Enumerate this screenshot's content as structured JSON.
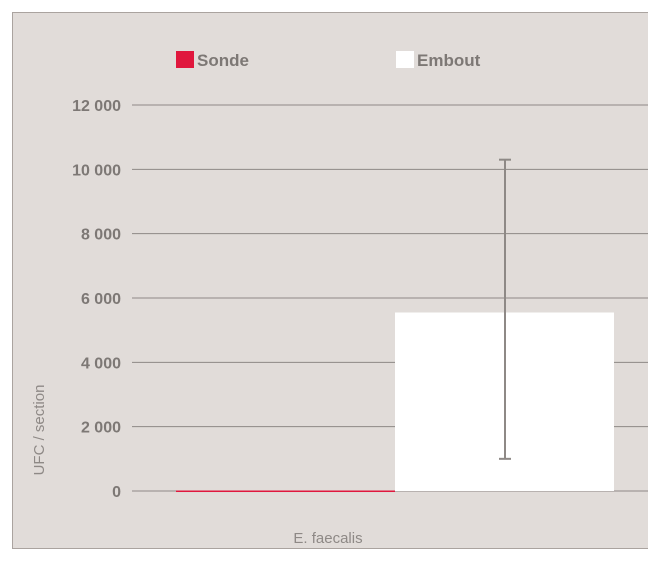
{
  "chart_data": {
    "type": "bar",
    "categories": [
      "E. faecalis"
    ],
    "series": [
      {
        "name": "Sonde",
        "values": [
          15
        ],
        "color": "#e0173d"
      },
      {
        "name": "Embout",
        "values": [
          5550
        ],
        "color": "#ffffff",
        "error_low": 1000,
        "error_high": 10300
      }
    ],
    "xlabel": "E. faecalis",
    "ylabel": "UFC / section",
    "ylim": [
      0,
      12000
    ],
    "yticks": [
      0,
      2000,
      4000,
      6000,
      8000,
      10000,
      12000
    ],
    "ytick_labels": [
      "0",
      "2 000",
      "4 000",
      "6 000",
      "8 000",
      "10 000",
      "12 000"
    ],
    "grid": true,
    "legend_position": "top"
  },
  "colors": {
    "background": "#e1dcd9",
    "grid": "#8e8986",
    "text": "#7d7875",
    "error_bar": "#8e8986"
  }
}
